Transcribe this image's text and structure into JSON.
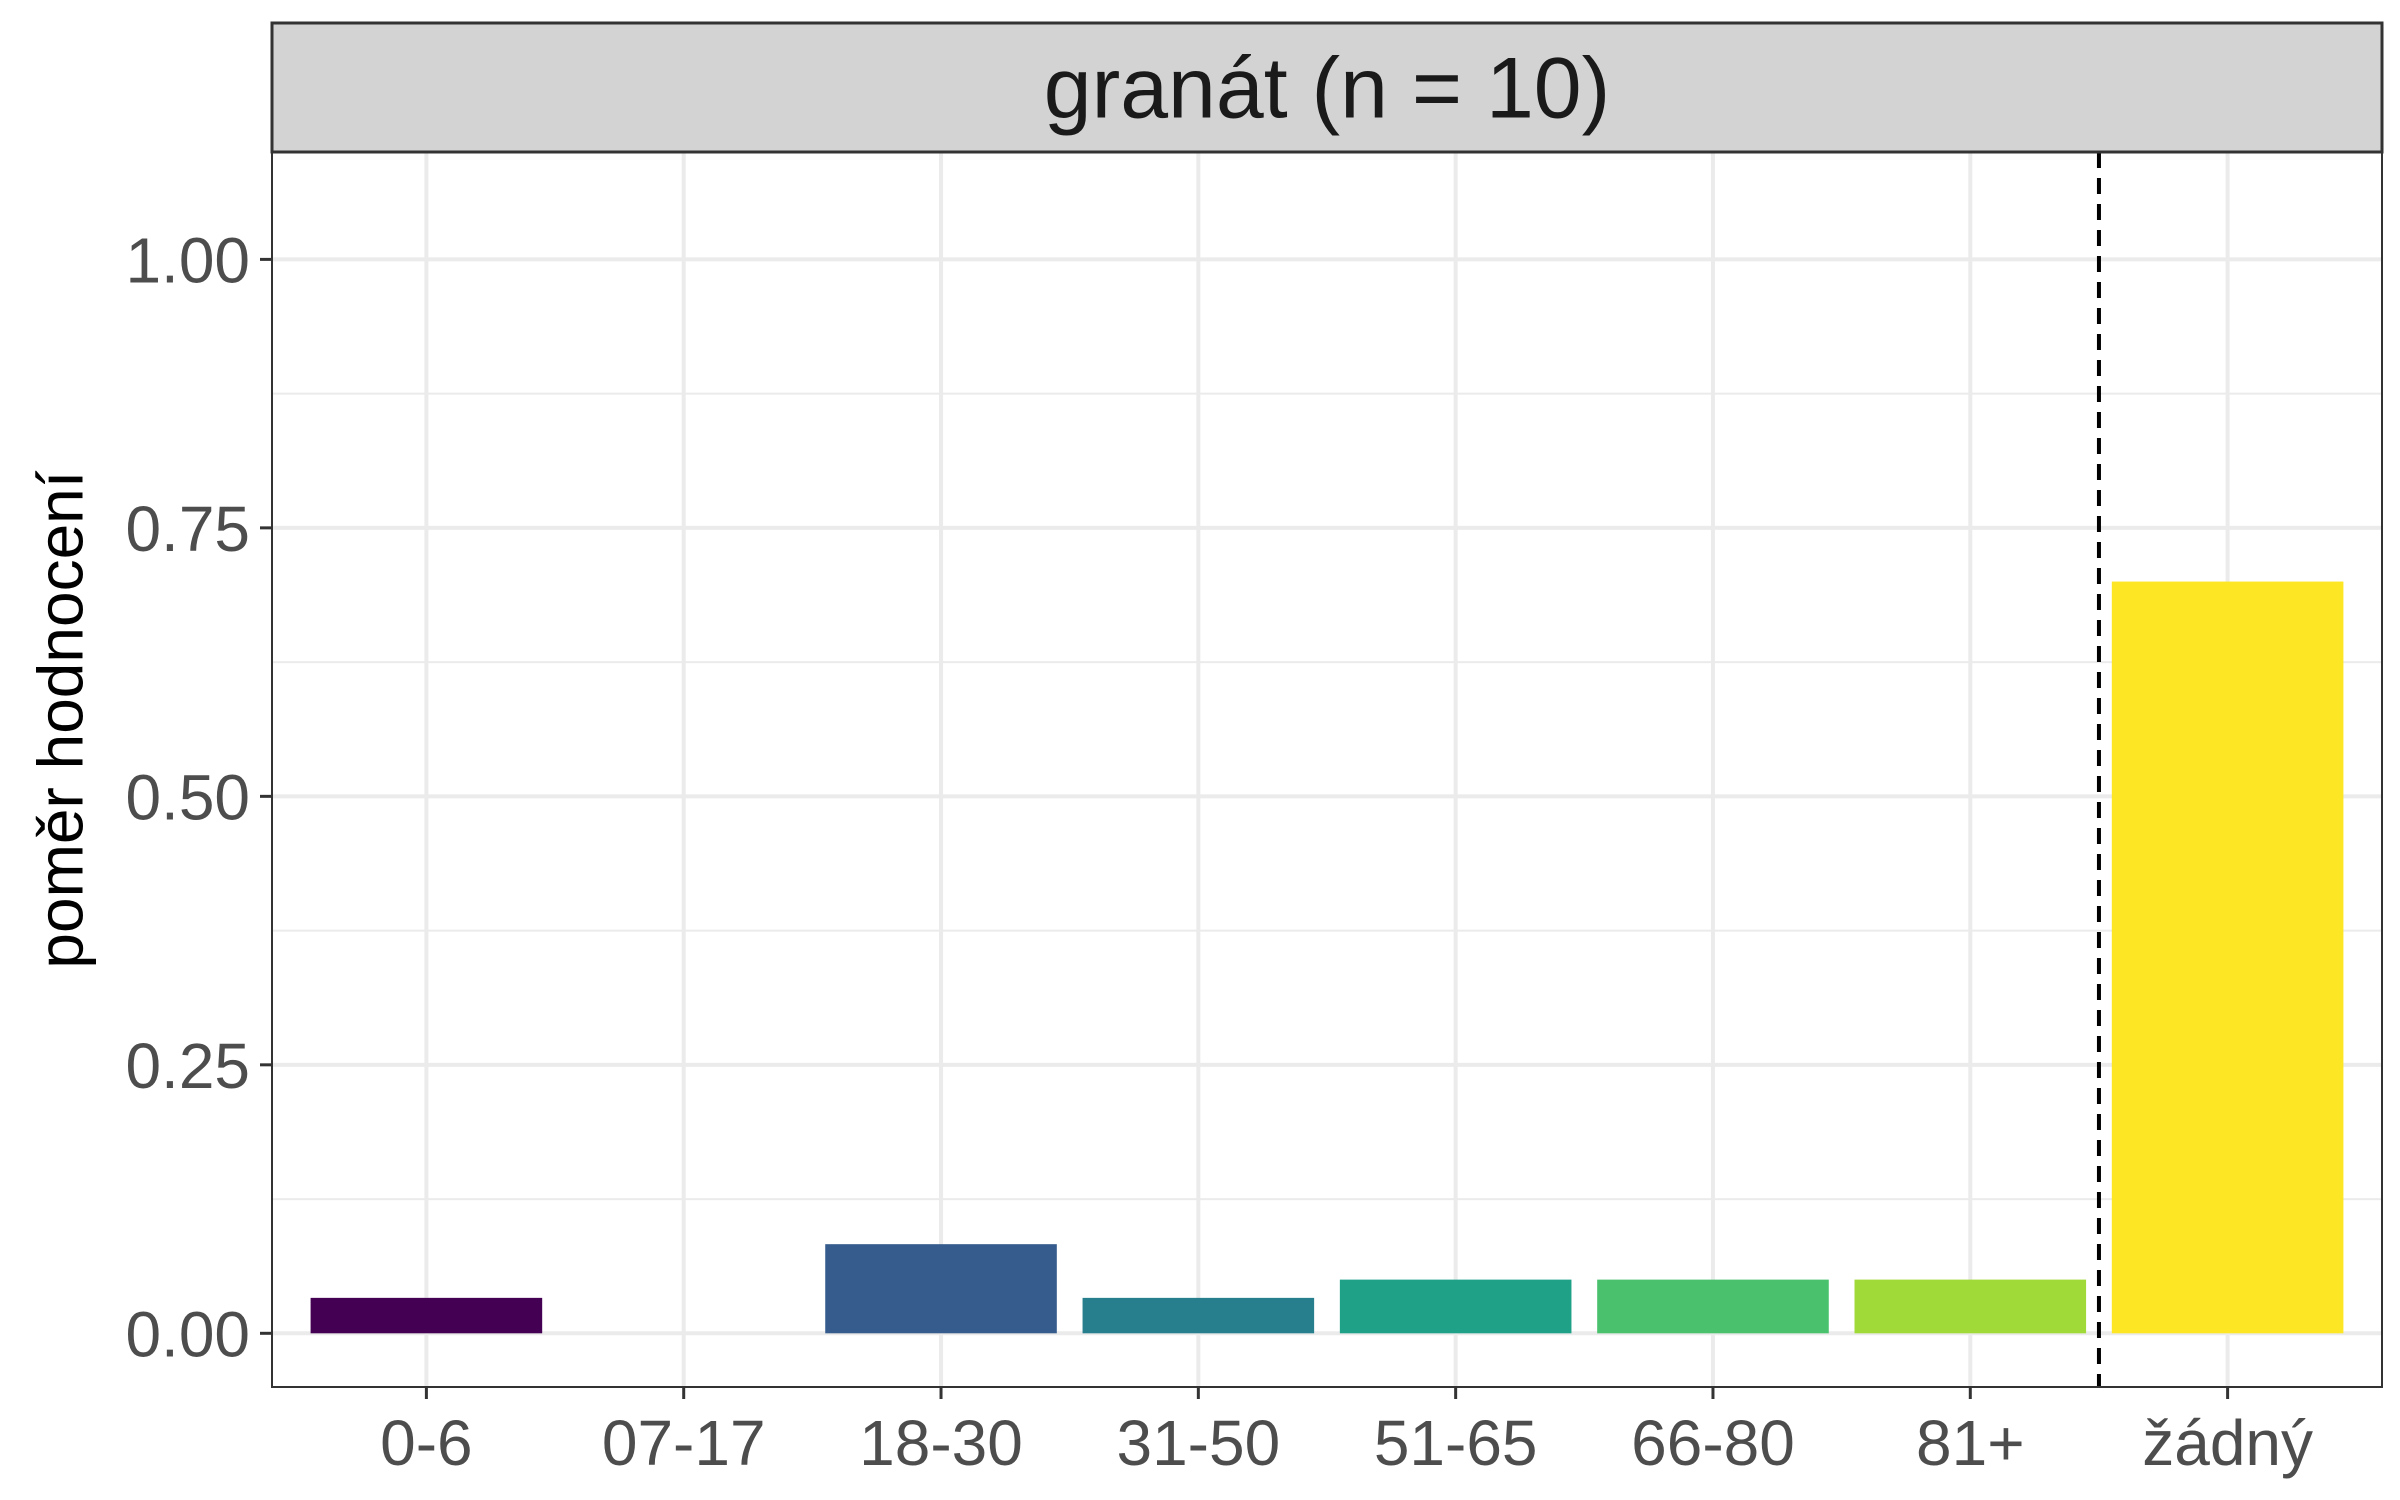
{
  "chart_data": {
    "type": "bar",
    "facet_title": "granát (n = 10)",
    "title": "",
    "xlabel": "",
    "ylabel": "poměr hodnocení",
    "categories": [
      "0-6",
      "07-17",
      "18-30",
      "31-50",
      "51-65",
      "66-80",
      "81+",
      "žádný"
    ],
    "values": [
      0.033,
      0.0,
      0.083,
      0.033,
      0.05,
      0.05,
      0.05,
      0.7
    ],
    "colors": [
      "#440154",
      "#46327e",
      "#365c8d",
      "#277f8e",
      "#1fa187",
      "#4ac16d",
      "#a0da39",
      "#fde725"
    ],
    "ylim": [
      -0.05,
      1.1
    ],
    "yticks": [
      0.0,
      0.25,
      0.5,
      0.75,
      1.0
    ],
    "ytick_labels": [
      "0.00",
      "0.25",
      "0.50",
      "0.75",
      "1.00"
    ],
    "grid": true,
    "reference_line": {
      "between": [
        "81+",
        "žádný"
      ],
      "style": "dashed",
      "color": "#000000"
    },
    "strip_color": "#d3d3d3",
    "panel_border_color": "#333333",
    "grid_color": "#ebebeb"
  }
}
